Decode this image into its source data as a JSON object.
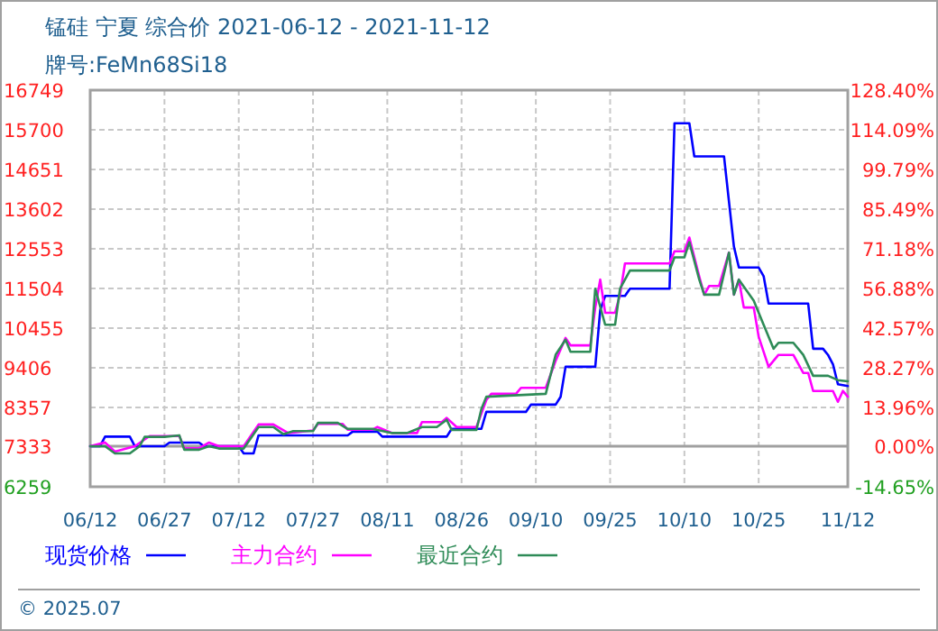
{
  "chart_data": {
    "type": "line",
    "title": "锰硅 宁夏 综合价 2021-06-12 - 2021-11-12",
    "subtitle": "牌号:FeMn68Si18",
    "xlim": [
      "2021-06-12",
      "2021-11-12"
    ],
    "xticks": [
      {
        "value": "2021-06-12",
        "label": "06/12"
      },
      {
        "value": "2021-06-27",
        "label": "06/27"
      },
      {
        "value": "2021-07-12",
        "label": "07/12"
      },
      {
        "value": "2021-07-27",
        "label": "07/27"
      },
      {
        "value": "2021-08-11",
        "label": "08/11"
      },
      {
        "value": "2021-08-26",
        "label": "08/26"
      },
      {
        "value": "2021-09-10",
        "label": "09/10"
      },
      {
        "value": "2021-09-25",
        "label": "09/25"
      },
      {
        "value": "2021-10-10",
        "label": "10/10"
      },
      {
        "value": "2021-10-25",
        "label": "10/25"
      },
      {
        "value": "2021-11-12",
        "label": "11/12"
      }
    ],
    "ylim": [
      6259,
      16749
    ],
    "yticks": [
      6259,
      7333,
      8357,
      9406,
      10455,
      11504,
      12553,
      13602,
      14651,
      15700,
      16749
    ],
    "y2lim": [
      -14.65,
      128.4
    ],
    "y2ticks": [
      {
        "value": -14.65,
        "label": "-14.65%"
      },
      {
        "value": 0,
        "label": "0.00%"
      },
      {
        "value": 13.96,
        "label": "13.96%"
      },
      {
        "value": 28.27,
        "label": "28.27%"
      },
      {
        "value": 42.57,
        "label": "42.57%"
      },
      {
        "value": 56.88,
        "label": "56.88%"
      },
      {
        "value": 71.18,
        "label": "71.18%"
      },
      {
        "value": 85.49,
        "label": "85.49%"
      },
      {
        "value": 99.79,
        "label": "99.79%"
      },
      {
        "value": 114.09,
        "label": "114.09%"
      },
      {
        "value": 128.4,
        "label": "128.40%"
      }
    ],
    "ref_lines": [
      {
        "axis": "y2",
        "value": 0,
        "color": "#a0a0a0"
      }
    ],
    "grid": true,
    "legend": "bottom",
    "marker": "none",
    "line_style": "solid",
    "annotations": [
      "© 2025.07"
    ],
    "series": [
      {
        "name": "现货价格",
        "color": "#0000ff",
        "x": [
          "2021-06-12",
          "2021-06-14",
          "2021-06-15",
          "2021-06-20",
          "2021-06-21",
          "2021-06-27",
          "2021-06-28",
          "2021-07-04",
          "2021-07-05",
          "2021-07-12",
          "2021-07-13",
          "2021-07-15",
          "2021-07-16",
          "2021-08-03",
          "2021-08-04",
          "2021-08-09",
          "2021-08-10",
          "2021-08-23",
          "2021-08-24",
          "2021-08-30",
          "2021-08-31",
          "2021-09-08",
          "2021-09-09",
          "2021-09-14",
          "2021-09-15",
          "2021-09-16",
          "2021-09-22",
          "2021-09-23",
          "2021-09-24",
          "2021-09-28",
          "2021-09-29",
          "2021-10-07",
          "2021-10-08",
          "2021-10-11",
          "2021-10-12",
          "2021-10-18",
          "2021-10-20",
          "2021-10-21",
          "2021-10-25",
          "2021-10-26",
          "2021-10-27",
          "2021-11-04",
          "2021-11-05",
          "2021-11-07",
          "2021-11-08",
          "2021-11-09",
          "2021-11-10",
          "2021-11-12"
        ],
        "values": [
          7333,
          7333,
          7586,
          7586,
          7333,
          7333,
          7428,
          7428,
          7333,
          7333,
          7142,
          7142,
          7619,
          7619,
          7715,
          7715,
          7586,
          7586,
          7791,
          7791,
          8240,
          8240,
          8431,
          8431,
          8636,
          9433,
          9433,
          10933,
          11308,
          11308,
          11499,
          11499,
          15874,
          15874,
          14997,
          14997,
          12611,
          12057,
          12057,
          11830,
          11103,
          11103,
          9910,
          9910,
          9747,
          9500,
          8970,
          8922
        ]
      },
      {
        "name": "主力合约",
        "color": "#ff00ff",
        "x": [
          "2021-06-12",
          "2021-06-15",
          "2021-06-17",
          "2021-06-21",
          "2021-06-24",
          "2021-06-30",
          "2021-07-01",
          "2021-07-04",
          "2021-07-06",
          "2021-07-08",
          "2021-07-13",
          "2021-07-16",
          "2021-07-19",
          "2021-07-22",
          "2021-07-27",
          "2021-07-28",
          "2021-08-02",
          "2021-08-03",
          "2021-08-08",
          "2021-08-09",
          "2021-08-12",
          "2021-08-17",
          "2021-08-18",
          "2021-08-22",
          "2021-08-23",
          "2021-08-25",
          "2021-08-29",
          "2021-08-31",
          "2021-09-01",
          "2021-09-06",
          "2021-09-07",
          "2021-09-12",
          "2021-09-14",
          "2021-09-16",
          "2021-09-17",
          "2021-09-21",
          "2021-09-22",
          "2021-09-23",
          "2021-09-24",
          "2021-09-26",
          "2021-09-27",
          "2021-09-28",
          "2021-10-07",
          "2021-10-08",
          "2021-10-10",
          "2021-10-11",
          "2021-10-13",
          "2021-10-14",
          "2021-10-15",
          "2021-10-17",
          "2021-10-19",
          "2021-10-20",
          "2021-10-21",
          "2021-10-22",
          "2021-10-24",
          "2021-10-25",
          "2021-10-27",
          "2021-10-29",
          "2021-11-01",
          "2021-11-03",
          "2021-11-04",
          "2021-11-05",
          "2021-11-09",
          "2021-11-10",
          "2021-11-11",
          "2021-11-12"
        ],
        "values": [
          7333,
          7430,
          7190,
          7333,
          7600,
          7600,
          7280,
          7280,
          7428,
          7333,
          7333,
          7906,
          7906,
          7680,
          7750,
          7920,
          7920,
          7770,
          7770,
          7840,
          7680,
          7680,
          7970,
          7970,
          8080,
          7840,
          7840,
          8555,
          8717,
          8717,
          8875,
          8875,
          9590,
          10196,
          10000,
          10000,
          11000,
          11738,
          10860,
          10860,
          11340,
          12167,
          12167,
          12487,
          12487,
          12850,
          11818,
          11340,
          11570,
          11570,
          12453,
          11340,
          11738,
          11000,
          11000,
          10225,
          9433,
          9747,
          9747,
          9270,
          9270,
          8793,
          8793,
          8507,
          8793,
          8640
        ]
      },
      {
        "name": "最近合约",
        "color": "#2e8b57",
        "x": [
          "2021-06-12",
          "2021-06-15",
          "2021-06-17",
          "2021-06-20",
          "2021-06-22",
          "2021-06-23",
          "2021-06-27",
          "2021-06-30",
          "2021-07-01",
          "2021-07-04",
          "2021-07-06",
          "2021-07-08",
          "2021-07-13",
          "2021-07-16",
          "2021-07-19",
          "2021-07-21",
          "2021-07-23",
          "2021-07-27",
          "2021-07-28",
          "2021-08-01",
          "2021-08-03",
          "2021-08-08",
          "2021-08-12",
          "2021-08-15",
          "2021-08-18",
          "2021-08-21",
          "2021-08-23",
          "2021-08-24",
          "2021-08-29",
          "2021-08-30",
          "2021-08-31",
          "2021-09-12",
          "2021-09-14",
          "2021-09-16",
          "2021-09-17",
          "2021-09-21",
          "2021-09-22",
          "2021-09-24",
          "2021-09-26",
          "2021-09-27",
          "2021-09-29",
          "2021-10-07",
          "2021-10-08",
          "2021-10-10",
          "2021-10-11",
          "2021-10-13",
          "2021-10-14",
          "2021-10-17",
          "2021-10-19",
          "2021-10-20",
          "2021-10-21",
          "2021-10-24",
          "2021-10-26",
          "2021-10-28",
          "2021-10-29",
          "2021-11-01",
          "2021-11-03",
          "2021-11-05",
          "2021-11-08",
          "2021-11-10",
          "2021-11-12"
        ],
        "values": [
          7333,
          7333,
          7140,
          7140,
          7333,
          7580,
          7580,
          7620,
          7240,
          7240,
          7333,
          7270,
          7270,
          7840,
          7840,
          7650,
          7730,
          7730,
          7950,
          7950,
          7790,
          7790,
          7680,
          7680,
          7840,
          7840,
          8030,
          7760,
          7760,
          8315,
          8640,
          8717,
          9750,
          10150,
          9830,
          9830,
          11499,
          10545,
          10545,
          11500,
          11977,
          11977,
          12327,
          12327,
          12727,
          11738,
          11340,
          11340,
          12453,
          11340,
          11738,
          11180,
          10545,
          9910,
          10068,
          10068,
          9750,
          9195,
          9195,
          9080,
          9050
        ]
      }
    ]
  }
}
